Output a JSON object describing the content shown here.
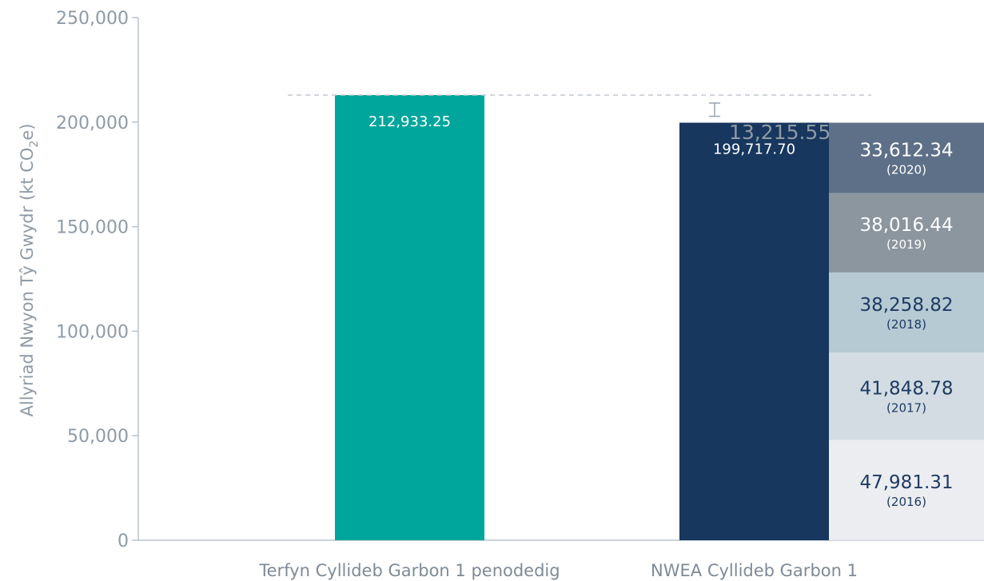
{
  "chart_data": {
    "type": "bar",
    "ylabel": "Allyriad Nwyon Tŷ Gwydr (kt CO₂e)",
    "ylabel_parts": {
      "main": "Allyriad Nwyon Tŷ Gwydr (kt CO",
      "sub": "2",
      "end": "e)"
    },
    "ylim": [
      0,
      250000
    ],
    "yticks": [
      0,
      50000,
      100000,
      150000,
      200000,
      250000
    ],
    "ytick_labels": [
      "0",
      "50,000",
      "100,000",
      "150,000",
      "200,000",
      "250,000"
    ],
    "categories": [
      "Terfyn Cyllideb Garbon 1 penodedig",
      "NWEA Cyllideb Garbon 1"
    ],
    "bars": [
      {
        "category": "Terfyn Cyllideb Garbon 1 penodedig",
        "value": 212933.25,
        "label": "212,933.25",
        "color": "#00a59b"
      },
      {
        "category": "NWEA Cyllideb Garbon 1",
        "value": 199717.7,
        "label": "199,717.70",
        "color": "#17375e"
      }
    ],
    "stack": {
      "category": "NWEA Cyllideb Garbon 1",
      "segments": [
        {
          "year": "(2016)",
          "value": 47981.31,
          "label": "47,981.31",
          "color": "#ebedf1",
          "text_color": "#1f3b63"
        },
        {
          "year": "(2017)",
          "value": 41848.78,
          "label": "41,848.78",
          "color": "#d2dce2",
          "text_color": "#1f3b63"
        },
        {
          "year": "(2018)",
          "value": 38258.82,
          "label": "38,258.82",
          "color": "#b5cad3",
          "text_color": "#1f3b63"
        },
        {
          "year": "(2019)",
          "value": 38016.44,
          "label": "38,016.44",
          "color": "#8b969f",
          "text_color": "#ffffff"
        },
        {
          "year": "(2020)",
          "value": 33612.34,
          "label": "33,612.34",
          "color": "#5e7088",
          "text_color": "#ffffff"
        }
      ]
    },
    "difference": {
      "value": 13215.55,
      "label": "13,215.55"
    }
  }
}
